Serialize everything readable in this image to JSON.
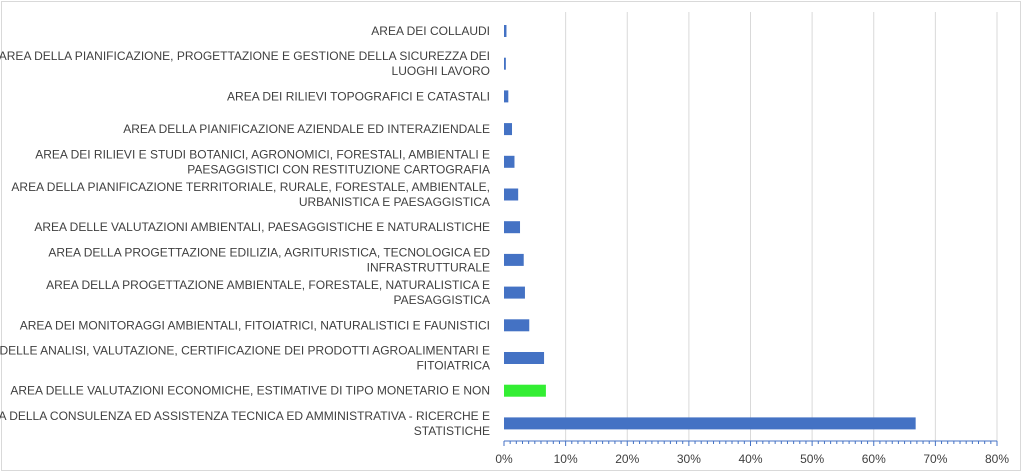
{
  "chart_data": {
    "type": "bar",
    "orientation": "horizontal",
    "title": "",
    "xlabel": "",
    "ylabel": "",
    "xlim": [
      0,
      0.8
    ],
    "x_ticks": [
      0,
      0.1,
      0.2,
      0.3,
      0.4,
      0.5,
      0.6,
      0.7,
      0.8
    ],
    "x_tick_labels": [
      "0%",
      "10%",
      "20%",
      "30%",
      "40%",
      "50%",
      "60%",
      "70%",
      "80%"
    ],
    "grid": "vertical",
    "legend": "none",
    "categories": [
      "AREA DEI COLLAUDI",
      "AREA DELLA PIANIFICAZIONE, PROGETTAZIONE E GESTIONE DELLA SICUREZZA DEI LUOGHI LAVORO",
      "AREA DEI RILIEVI TOPOGRAFICI E CATASTALI",
      "AREA DELLA PIANIFICAZIONE AZIENDALE ED INTERAZIENDALE",
      "AREA DEI RILIEVI  E STUDI BOTANICI,  AGRONOMICI, FORESTALI, AMBIENTALI E PAESAGGISTICI CON RESTITUZIONE CARTOGRAFIA",
      "AREA DELLA PIANIFICAZIONE TERRITORIALE, RURALE, FORESTALE, AMBIENTALE, URBANISTICA E PAESAGGISTICA",
      "AREA DELLE VALUTAZIONI AMBIENTALI, PAESAGGISTICHE E NATURALISTICHE",
      "AREA DELLA PROGETTAZIONE EDILIZIA, AGRITURISTICA, TECNOLOGICA ED INFRASTRUTTURALE",
      "AREA DELLA PROGETTAZIONE AMBIENTALE, FORESTALE, NATURALISTICA E PAESAGGISTICA",
      "AREA DEI MONITORAGGI AMBIENTALI, FITOIATRICI, NATURALISTICI E FAUNISTICI",
      "AREA DELLE ANALISI, VALUTAZIONE, CERTIFICAZIONE DEI PRODOTTI AGROALIMENTARI E FITOIATRICA",
      "AREA DELLE VALUTAZIONI ECONOMICHE, ESTIMATIVE DI TIPO MONETARIO E NON",
      "AREA DELLA CONSULENZA ED ASSISTENZA TECNICA ED AMMINISTRATIVA - RICERCHE E STATISTICHE"
    ],
    "category_lines": [
      [
        "AREA DEI COLLAUDI"
      ],
      [
        "AREA DELLA PIANIFICAZIONE, PROGETTAZIONE E GESTIONE DELLA SICUREZZA DEI",
        "LUOGHI LAVORO"
      ],
      [
        "AREA DEI RILIEVI TOPOGRAFICI E CATASTALI"
      ],
      [
        "AREA DELLA PIANIFICAZIONE AZIENDALE ED INTERAZIENDALE"
      ],
      [
        "AREA DEI RILIEVI  E STUDI BOTANICI,  AGRONOMICI, FORESTALI, AMBIENTALI E",
        "PAESAGGISTICI CON RESTITUZIONE CARTOGRAFIA"
      ],
      [
        "AREA DELLA PIANIFICAZIONE TERRITORIALE, RURALE, FORESTALE, AMBIENTALE,",
        "URBANISTICA E PAESAGGISTICA"
      ],
      [
        "AREA DELLE VALUTAZIONI AMBIENTALI, PAESAGGISTICHE E NATURALISTICHE"
      ],
      [
        "AREA DELLA PROGETTAZIONE EDILIZIA, AGRITURISTICA, TECNOLOGICA ED",
        "INFRASTRUTTURALE"
      ],
      [
        "AREA DELLA PROGETTAZIONE AMBIENTALE, FORESTALE, NATURALISTICA E",
        "PAESAGGISTICA"
      ],
      [
        "AREA DEI MONITORAGGI AMBIENTALI, FITOIATRICI, NATURALISTICI E FAUNISTICI"
      ],
      [
        "AREA DELLE ANALISI, VALUTAZIONE, CERTIFICAZIONE DEI PRODOTTI AGROALIMENTARI E",
        "FITOIATRICA"
      ],
      [
        "AREA DELLE VALUTAZIONI ECONOMICHE, ESTIMATIVE DI TIPO MONETARIO E NON"
      ],
      [
        "AREA DELLA CONSULENZA ED ASSISTENZA TECNICA ED AMMINISTRATIVA - RICERCHE E",
        "STATISTICHE"
      ]
    ],
    "values": [
      0.004,
      0.003,
      0.007,
      0.013,
      0.017,
      0.023,
      0.026,
      0.032,
      0.034,
      0.041,
      0.065,
      0.068,
      0.668
    ],
    "bar_colors": [
      "#4472c4",
      "#4472c4",
      "#4472c4",
      "#4472c4",
      "#4472c4",
      "#4472c4",
      "#4472c4",
      "#4472c4",
      "#4472c4",
      "#4472c4",
      "#4472c4",
      "#33ee33",
      "#4472c4"
    ],
    "colors": {
      "bar": "#4472c4",
      "highlight_bar": "#33ee33",
      "gridline": "#d9d9d9",
      "axis": "#4472c4",
      "text": "#404040"
    }
  }
}
